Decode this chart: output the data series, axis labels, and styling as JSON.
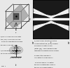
{
  "bg_color": "#e8e8e8",
  "fig_label": "Figure 7",
  "panel_tl": {
    "desc": "3D BZ cube with shaded hexagonal plane",
    "cube_color": "#000000",
    "shade_color": "#888888",
    "bg": "#e8e8e8"
  },
  "panel_tr": {
    "desc": "Band structure dark/light pattern",
    "bg": "#888888",
    "dark": "#222222",
    "light": "#dddddd",
    "white": "#ffffff"
  },
  "panel_bl": {
    "desc": "Dipole antenna with radiation pattern",
    "bg": "#e8e8e8",
    "text_lines": [
      "a) 3D Brillouin zone of silicon",
      "showing the (111) surface.",
      "",
      "b) Projected bulk band structure",
      "along surface BZ directions.",
      "",
      "c) Schematic of measurement",
      "geometry used."
    ]
  },
  "panel_br": {
    "desc": "Text panel",
    "text_lines": [
      "b) Electronic structure of the",
      "unreconstructed Si(111) surface.",
      "The shaded regions represent",
      "projected bulk bands. The",
      "solid lines indicate surface",
      "state bands. EF marks the",
      "Fermi level position.",
      "",
      "M-bar Gamma-bar M-bar"
    ]
  }
}
